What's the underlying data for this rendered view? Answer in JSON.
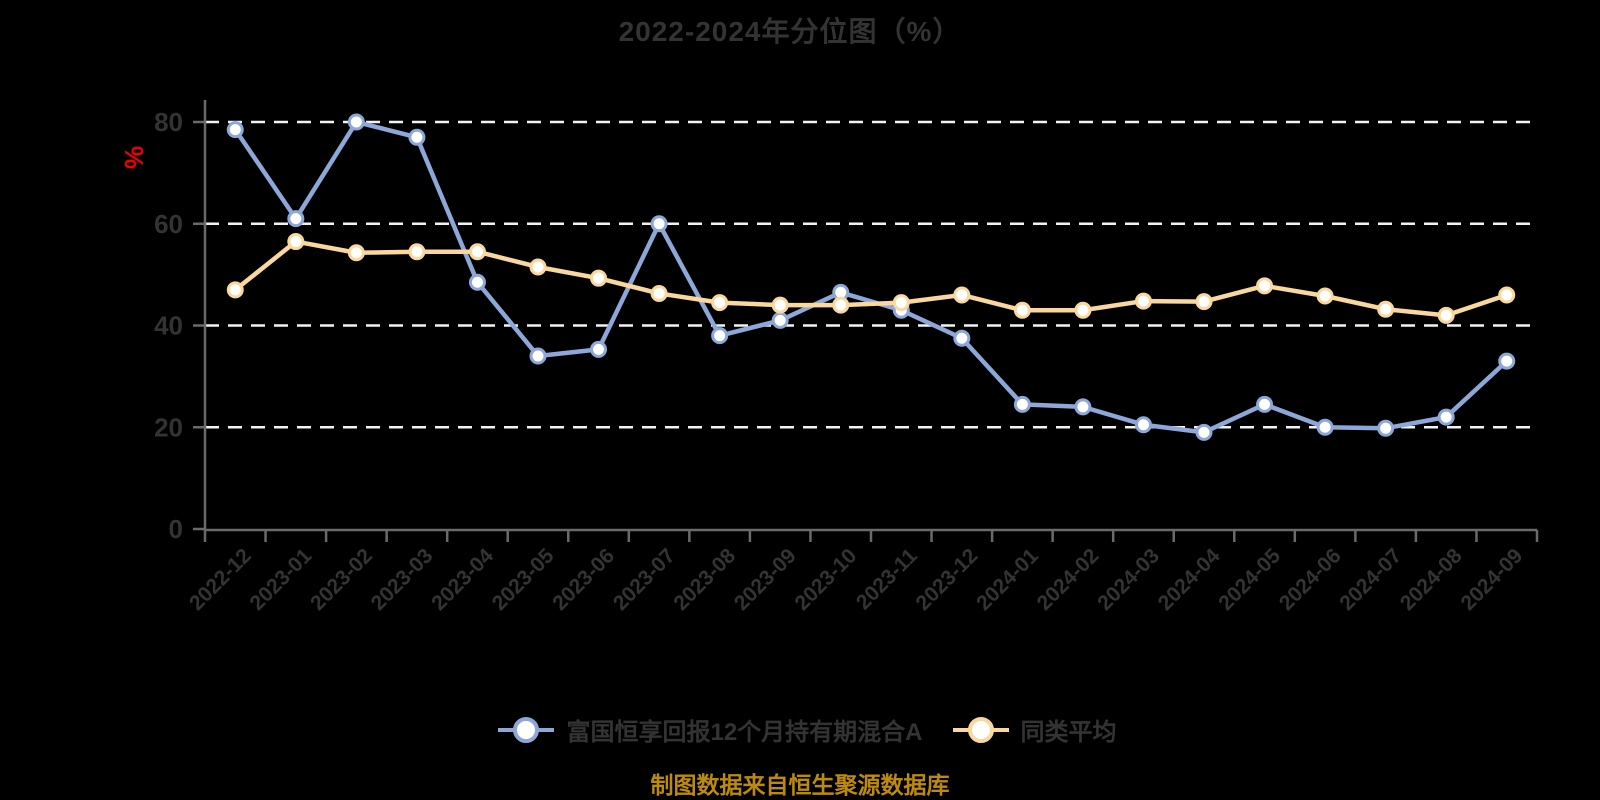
{
  "title": "2022-2024年分位图（%）",
  "y_axis_unit": "%",
  "caption": "制图数据来自恒生聚源数据库",
  "colors": {
    "series1": "#8ca7d8",
    "series2": "#f9d79d",
    "title_text": "#333333",
    "axis_text": "#333333",
    "unit_label": "#ee0000",
    "caption_text": "#bd8a10",
    "gridline": "#f2f2f2",
    "axis_line": "#6a6a6a",
    "background": "#000000"
  },
  "legend": [
    {
      "label": "富国恒享回报12个月持有期混合A"
    },
    {
      "label": "同类平均"
    }
  ],
  "chart_data": {
    "type": "line",
    "title": "2022-2024年分位图（%）",
    "ylabel": "%",
    "ylim": [
      0,
      80
    ],
    "yticks": [
      0,
      20,
      40,
      60,
      80
    ],
    "grid": "horizontal-dashed",
    "legend_position": "bottom",
    "categories": [
      "2022-12",
      "2023-01",
      "2023-02",
      "2023-03",
      "2023-04",
      "2023-05",
      "2023-06",
      "2023-07",
      "2023-08",
      "2023-09",
      "2023-10",
      "2023-11",
      "2023-12",
      "2024-01",
      "2024-02",
      "2024-03",
      "2024-04",
      "2024-05",
      "2024-06",
      "2024-07",
      "2024-08",
      "2024-09"
    ],
    "series": [
      {
        "name": "富国恒享回报12个月持有期混合A",
        "color": "#8ca7d8",
        "values": [
          78.5,
          61,
          80,
          77,
          48.5,
          34,
          35.3,
          60,
          38,
          41,
          46.5,
          43,
          37.5,
          24.5,
          24,
          20.5,
          19,
          24.5,
          20,
          19.8,
          22,
          33
        ]
      },
      {
        "name": "同类平均",
        "color": "#f9d79d",
        "values": [
          47,
          56.5,
          54.3,
          54.5,
          54.5,
          51.5,
          49.3,
          46.3,
          44.5,
          44,
          44,
          44.5,
          46,
          43,
          43,
          44.8,
          44.7,
          47.8,
          45.8,
          43.2,
          42,
          46
        ]
      }
    ]
  }
}
